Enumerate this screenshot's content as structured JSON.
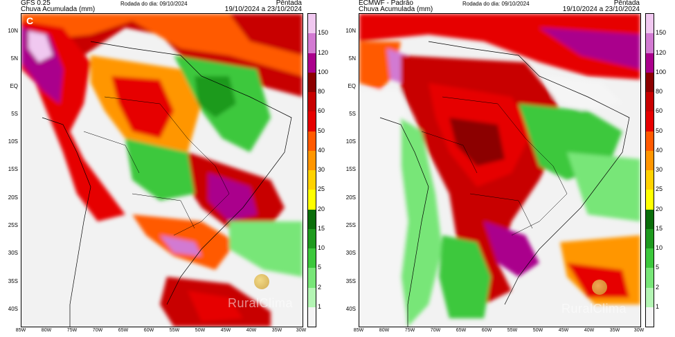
{
  "panels": [
    {
      "model": "GFS 0.25",
      "product": "Chuva Acumulada (mm)",
      "run": "Rodada do dia: 09/10/2024",
      "period_type": "Pêntada",
      "period": "19/10/2024 a 23/10/2024",
      "corner_badge": "C",
      "watermark": "RuralClima"
    },
    {
      "model": "ECMWF - Padrão",
      "product": "Chuva Acumulada (mm)",
      "run": "Rodada do dia: 09/10/2024",
      "period_type": "Pêntada",
      "period": "19/10/2024 a 23/10/2024",
      "corner_badge": "",
      "watermark": "RuralClima"
    }
  ],
  "lat_labels": [
    "10N",
    "5N",
    "EQ",
    "5S",
    "10S",
    "15S",
    "20S",
    "25S",
    "30S",
    "35S",
    "40S"
  ],
  "lon_labels": [
    "85W",
    "80W",
    "75W",
    "70W",
    "65W",
    "60W",
    "55W",
    "50W",
    "45W",
    "40W",
    "35W",
    "30W"
  ],
  "colorbar": {
    "ticks": [
      "1",
      "2",
      "5",
      "10",
      "15",
      "20",
      "25",
      "30",
      "40",
      "50",
      "60",
      "80",
      "100",
      "120",
      "150"
    ],
    "colors": [
      "#f5f5f5",
      "#b4f5b4",
      "#78e678",
      "#3cc83c",
      "#1e9a1e",
      "#0a6e0a",
      "#ffff00",
      "#ffd200",
      "#ff9600",
      "#ff5a00",
      "#e60000",
      "#c80000",
      "#8c0000",
      "#aa008c",
      "#d27ad2",
      "#f0c8f0"
    ]
  }
}
